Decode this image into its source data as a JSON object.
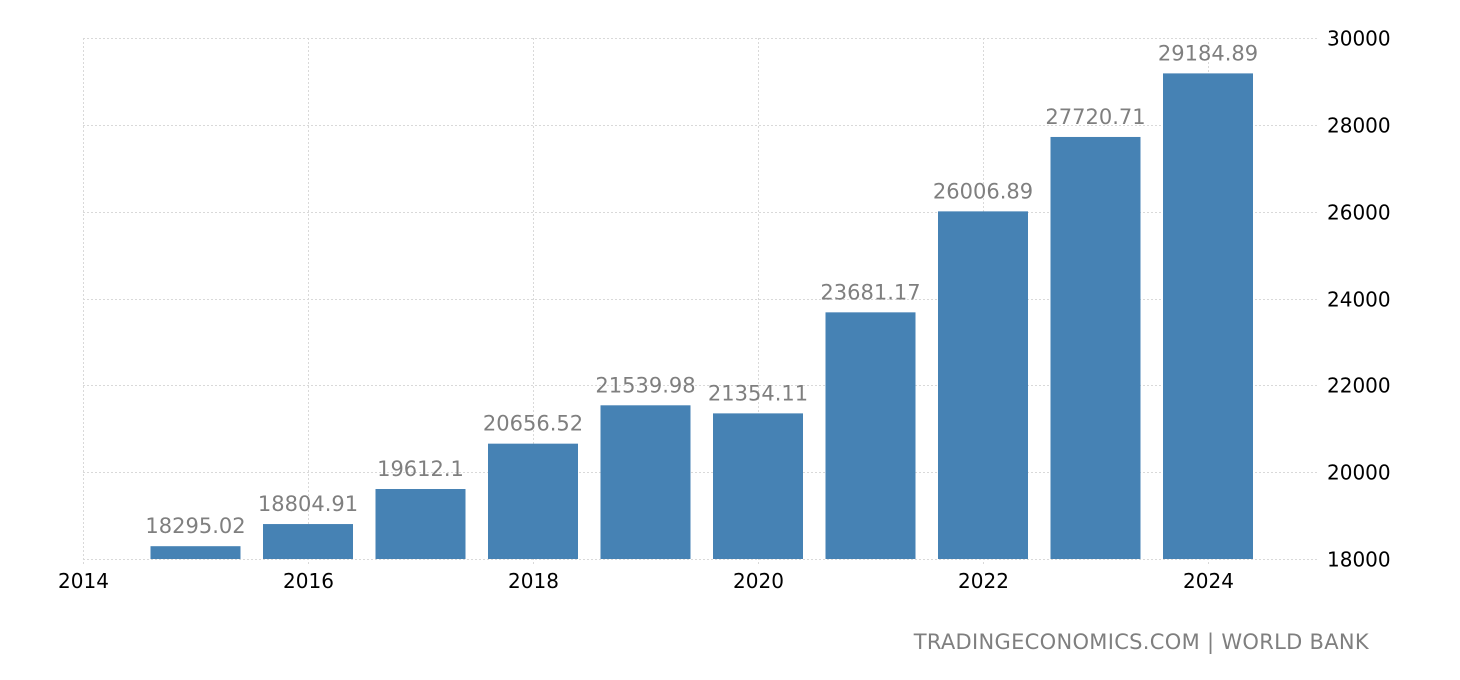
{
  "chart_data": {
    "type": "bar",
    "title": "",
    "xlabel": "",
    "ylabel": "",
    "categories": [
      "2015",
      "2016",
      "2017",
      "2018",
      "2019",
      "2020",
      "2021",
      "2022",
      "2023",
      "2024"
    ],
    "values": [
      18295.02,
      18804.91,
      19612.1,
      20656.52,
      21539.98,
      21354.11,
      23681.17,
      26006.89,
      27720.71,
      29184.89
    ],
    "value_labels": [
      "18295.02",
      "18804.91",
      "19612.1",
      "20656.52",
      "21539.98",
      "21354.11",
      "23681.17",
      "26006.89",
      "27720.71",
      "29184.89"
    ],
    "x_ticks": [
      "2014",
      "2016",
      "2018",
      "2020",
      "2022",
      "2024"
    ],
    "y_ticks": [
      "18000",
      "20000",
      "22000",
      "24000",
      "26000",
      "28000",
      "30000"
    ],
    "ylim": [
      18000,
      30000
    ],
    "xlim": [
      2014,
      2025.8
    ],
    "grid": true,
    "y_axis_position": "right",
    "bar_color": "#4682b4",
    "legend": null
  },
  "source": "TRADINGECONOMICS.COM  |  WORLD BANK"
}
